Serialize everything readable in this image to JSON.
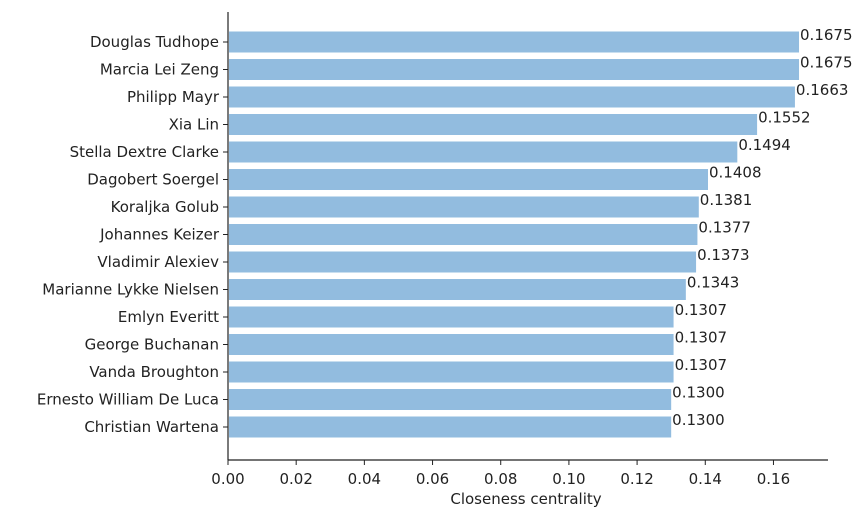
{
  "chart_data": {
    "type": "bar",
    "orientation": "horizontal",
    "categories": [
      "Douglas Tudhope",
      "Marcia Lei Zeng",
      "Philipp Mayr",
      "Xia Lin",
      "Stella Dextre Clarke",
      "Dagobert Soergel",
      "Koraljka Golub",
      "Johannes Keizer",
      "Vladimir Alexiev",
      "Marianne Lykke Nielsen",
      "Emlyn Everitt",
      "George Buchanan",
      "Vanda Broughton",
      "Ernesto William De Luca",
      "Christian Wartena"
    ],
    "values": [
      0.1675,
      0.1675,
      0.1663,
      0.1552,
      0.1494,
      0.1408,
      0.1381,
      0.1377,
      0.1373,
      0.1343,
      0.1307,
      0.1307,
      0.1307,
      0.13,
      0.13
    ],
    "value_labels": [
      "0.1675",
      "0.1675",
      "0.1663",
      "0.1552",
      "0.1494",
      "0.1408",
      "0.1381",
      "0.1377",
      "0.1373",
      "0.1343",
      "0.1307",
      "0.1307",
      "0.1307",
      "0.1300",
      "0.1300"
    ],
    "xlabel": "Closeness centrality",
    "ylabel": "",
    "xlim": [
      0,
      0.176
    ],
    "xticks": [
      0.0,
      0.02,
      0.04,
      0.06,
      0.08,
      0.1,
      0.12,
      0.14,
      0.16
    ],
    "xtick_labels": [
      "0.00",
      "0.02",
      "0.04",
      "0.06",
      "0.08",
      "0.10",
      "0.12",
      "0.14",
      "0.16"
    ],
    "bar_color": "#92bcdf",
    "grid": false,
    "legend": "none"
  }
}
